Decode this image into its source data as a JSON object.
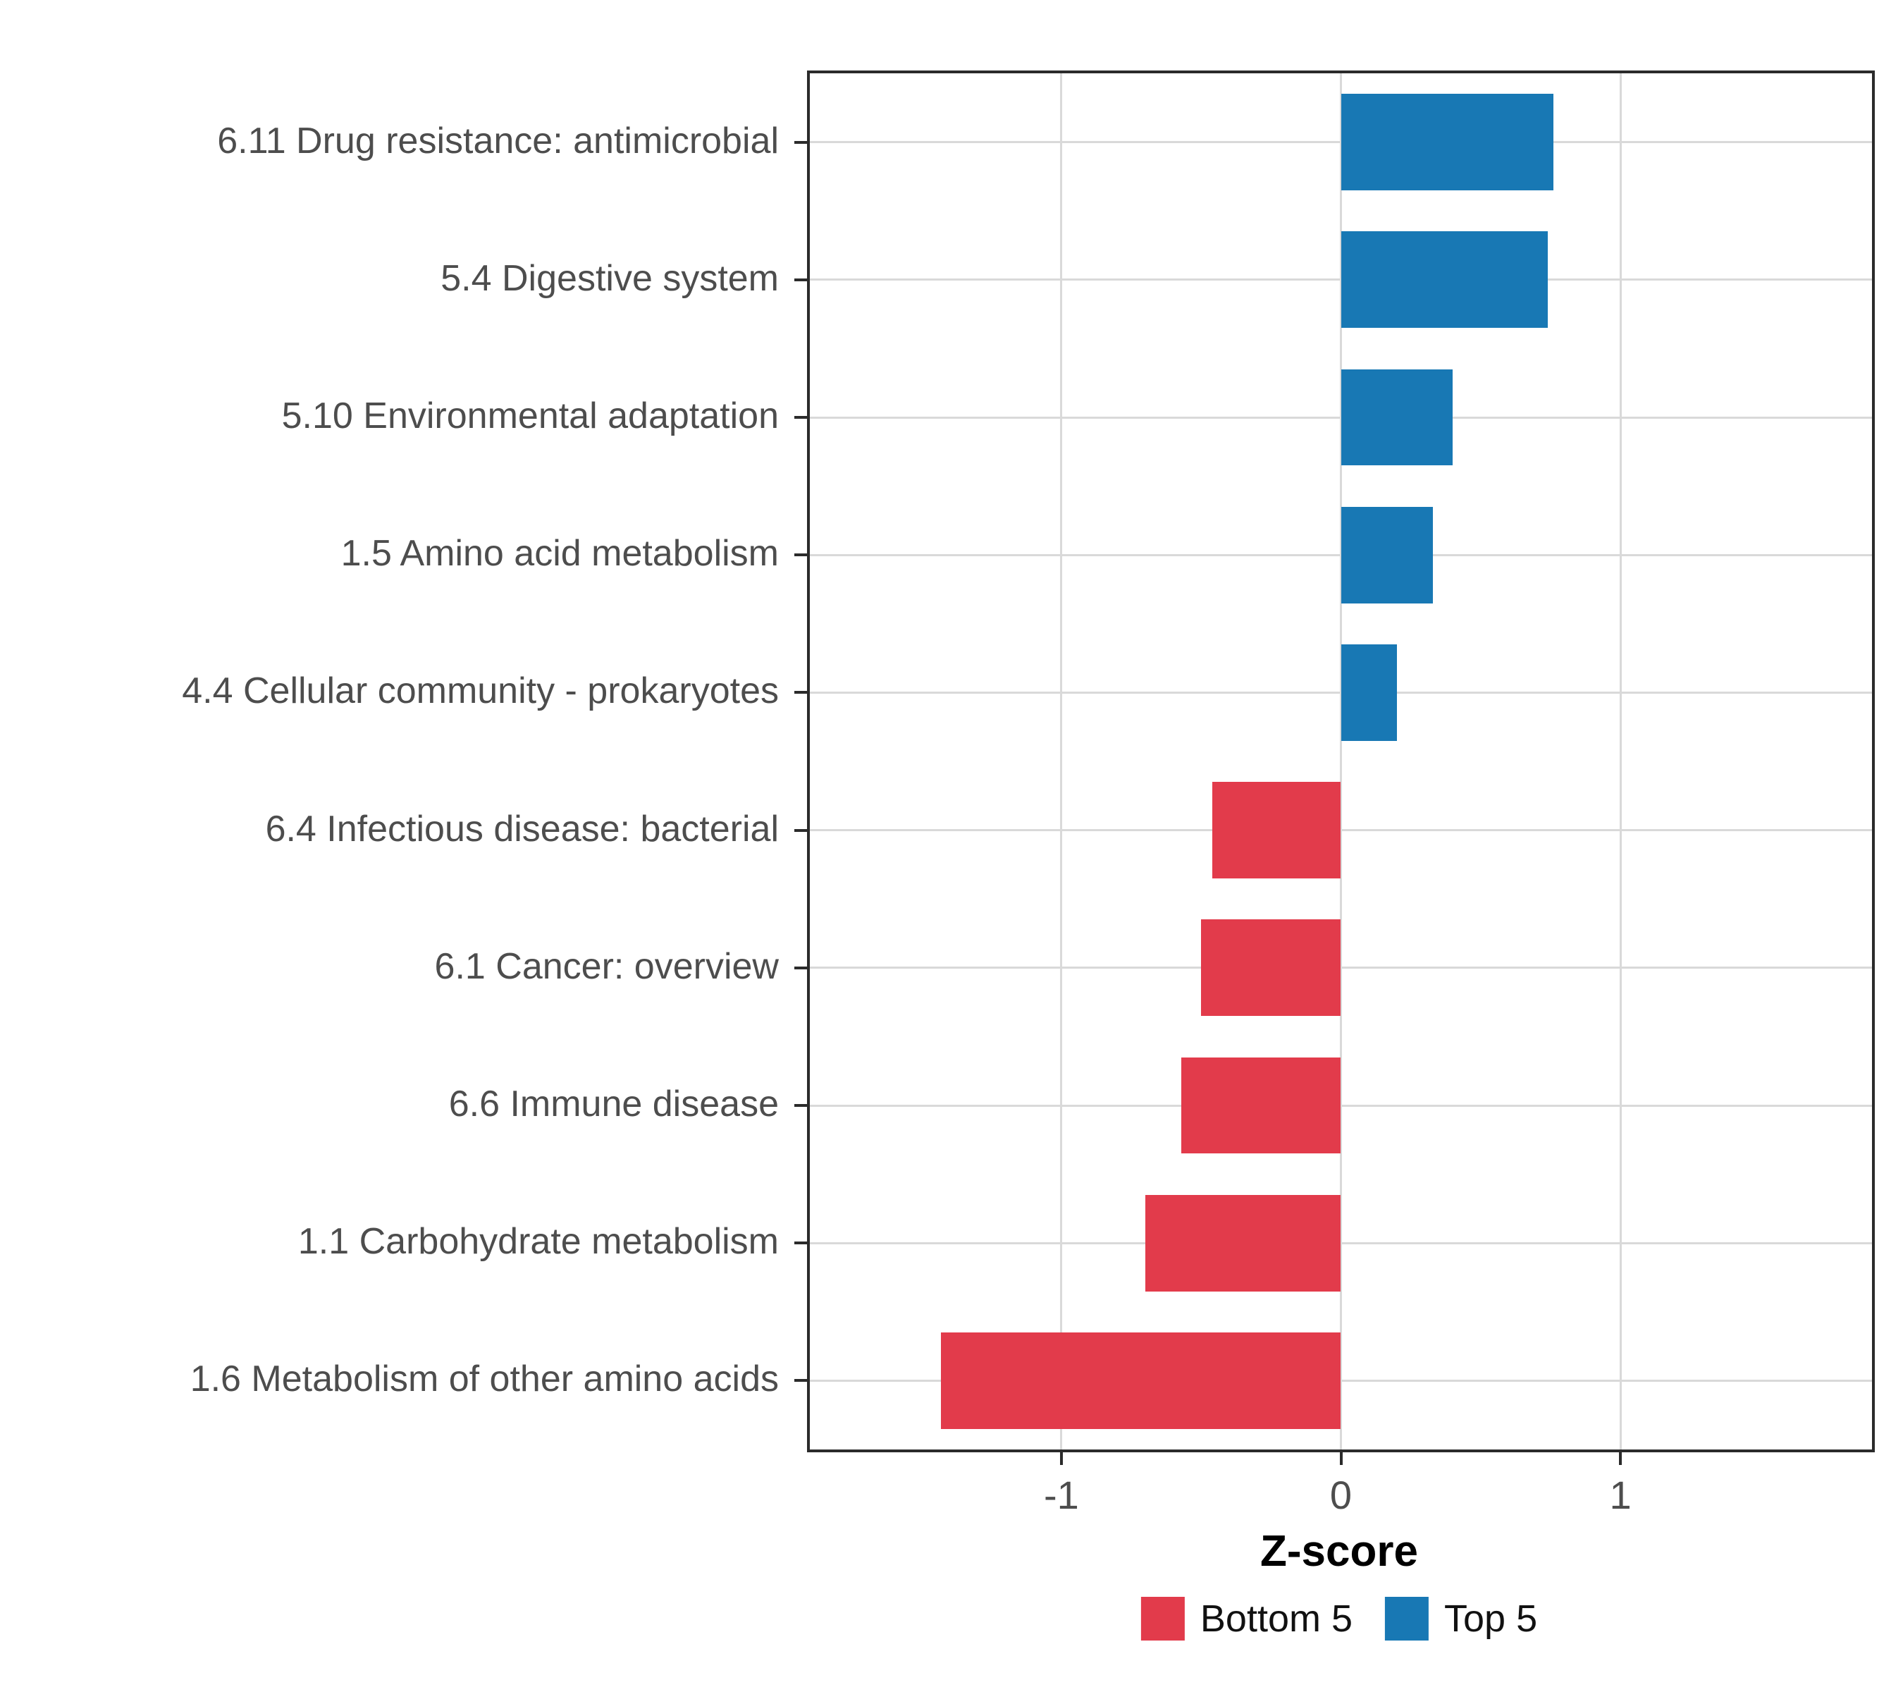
{
  "chart_data": {
    "type": "bar",
    "orientation": "horizontal",
    "title": "",
    "xlabel": "Z-score",
    "ylabel": "",
    "xlim": [
      -1.9,
      1.9
    ],
    "x_ticks": [
      {
        "value": -1,
        "label": "-1"
      },
      {
        "value": 0,
        "label": "0"
      },
      {
        "value": 1,
        "label": "1"
      }
    ],
    "grid": {
      "color": "#d9d9d9",
      "major_x": [
        -1,
        0,
        1
      ],
      "major_y": "category-centers"
    },
    "categories": [
      "6.11 Drug resistance: antimicrobial",
      "5.4 Digestive system",
      "5.10 Environmental adaptation",
      "1.5 Amino acid metabolism",
      "4.4 Cellular community - prokaryotes",
      "6.4 Infectious disease: bacterial",
      "6.1 Cancer: overview",
      "6.6 Immune disease",
      "1.1 Carbohydrate metabolism",
      "1.6 Metabolism of other amino acids"
    ],
    "values": [
      0.76,
      0.74,
      0.4,
      0.33,
      0.2,
      -0.46,
      -0.5,
      -0.57,
      -0.7,
      -1.43
    ],
    "groups": [
      "Top 5",
      "Top 5",
      "Top 5",
      "Top 5",
      "Top 5",
      "Bottom 5",
      "Bottom 5",
      "Bottom 5",
      "Bottom 5",
      "Bottom 5"
    ],
    "colors": {
      "Bottom 5": "#e23b4b",
      "Top 5": "#1878b4"
    },
    "legend": {
      "position": "bottom",
      "items": [
        {
          "label": "Bottom 5",
          "color": "#e23b4b"
        },
        {
          "label": "Top 5",
          "color": "#1878b4"
        }
      ]
    }
  }
}
